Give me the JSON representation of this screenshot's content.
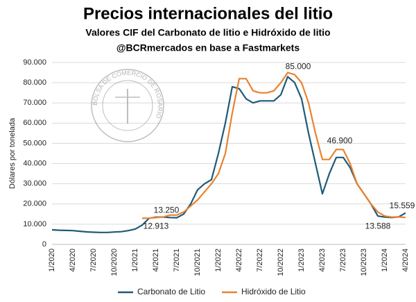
{
  "chart_data": {
    "type": "line",
    "title": "Precios internacionales del litio",
    "subtitle": "Valores CIF del Carbonato de litio e Hidróxido de litio",
    "source": "@BCRmercados en base a Fastmarkets",
    "logo_text": "BOLSA DE COMERCIO DE ROSARIO",
    "y_label": "Dólares por tonelada",
    "categories": [
      "1/2020",
      null,
      null,
      "4/2020",
      null,
      null,
      "7/2020",
      null,
      null,
      "10/2020",
      null,
      null,
      "1/2021",
      null,
      null,
      "4/2021",
      null,
      null,
      "7/2021",
      null,
      null,
      "10/2021",
      null,
      null,
      "1/2022",
      null,
      null,
      "4/2022",
      null,
      null,
      "7/2022",
      null,
      null,
      "10/2022",
      null,
      null,
      "1/2023",
      null,
      null,
      "4/2023",
      null,
      null,
      "7/2023",
      null,
      null,
      "10/2023",
      null,
      null,
      "1/2024",
      null,
      null,
      "4/2024"
    ],
    "series": [
      {
        "name": "Carbonato de Litio",
        "color": "#1d5a78",
        "values": [
          7200,
          7000,
          6900,
          6800,
          6500,
          6200,
          6000,
          5900,
          5900,
          6100,
          6300,
          6800,
          7600,
          9500,
          12900,
          13500,
          13500,
          13300,
          13200,
          15000,
          20000,
          27000,
          30000,
          32000,
          45000,
          60000,
          78000,
          77000,
          72000,
          70000,
          71000,
          71000,
          71000,
          74000,
          83000,
          80000,
          72000,
          55000,
          40000,
          25000,
          35000,
          43000,
          43000,
          38000,
          30000,
          25000,
          20000,
          14000,
          13500,
          13300,
          13600,
          15559
        ]
      },
      {
        "name": "Hidróxido de Litio",
        "color": "#e9822e",
        "values": [
          null,
          null,
          null,
          null,
          null,
          null,
          null,
          null,
          null,
          null,
          null,
          null,
          null,
          12913,
          13000,
          13250,
          13500,
          14500,
          14500,
          16000,
          19000,
          22000,
          26000,
          30000,
          35000,
          45000,
          65000,
          82000,
          82000,
          76000,
          75000,
          75000,
          76000,
          80000,
          85000,
          84000,
          80000,
          70000,
          55000,
          42000,
          42000,
          47000,
          46900,
          40000,
          30000,
          25000,
          20000,
          16000,
          14000,
          13500,
          13588,
          13300
        ]
      }
    ],
    "annotations": [
      {
        "value": 13250,
        "label": "13.250"
      },
      {
        "value": 12913,
        "label": "12.913"
      },
      {
        "value": 85000,
        "label": "85.000"
      },
      {
        "value": 46900,
        "label": "46.900"
      },
      {
        "value": 15559,
        "label": "15.559"
      },
      {
        "value": 13588,
        "label": "13.588"
      }
    ],
    "ylim": [
      0,
      90000
    ],
    "yticks": [
      {
        "value": 0,
        "label": "0"
      },
      {
        "value": 10000,
        "label": "10.000"
      },
      {
        "value": 20000,
        "label": "20.000"
      },
      {
        "value": 30000,
        "label": "30.000"
      },
      {
        "value": 40000,
        "label": "40.000"
      },
      {
        "value": 50000,
        "label": "50.000"
      },
      {
        "value": 60000,
        "label": "60.000"
      },
      {
        "value": 70000,
        "label": "70.000"
      },
      {
        "value": 80000,
        "label": "80.000"
      },
      {
        "value": 90000,
        "label": "90.000"
      }
    ],
    "grid": true,
    "legend": "bottom"
  }
}
